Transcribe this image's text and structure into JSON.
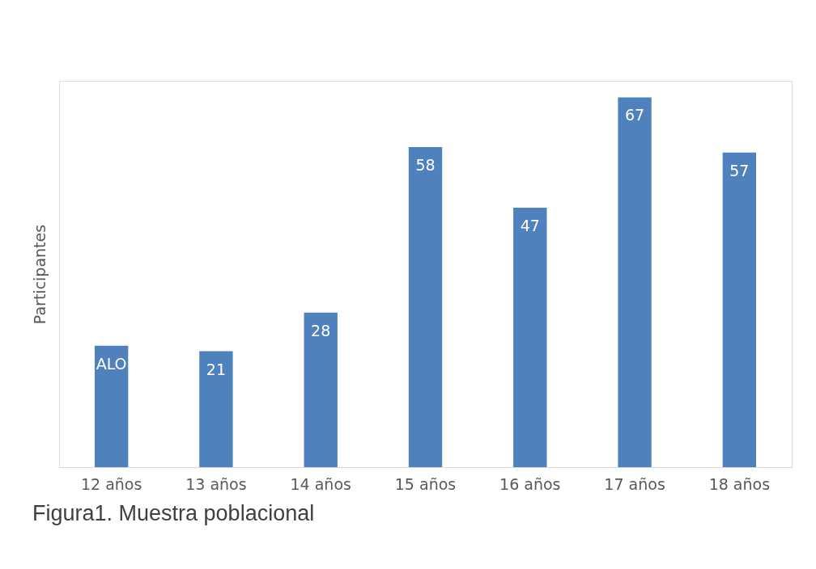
{
  "chart_data": {
    "type": "bar",
    "title": "Figura1. Muestra poblacional",
    "ylabel": "Participantes",
    "categories": [
      "12 años",
      "13 años",
      "14 años",
      "15 años",
      "16 años",
      "17 años",
      "18 años"
    ],
    "values": [
      22,
      21,
      28,
      58,
      47,
      67,
      57
    ],
    "value_labels": [
      "ALO",
      "21",
      "28",
      "58",
      "47",
      "67",
      "57"
    ],
    "color": "#4f81bd",
    "grid": false
  }
}
